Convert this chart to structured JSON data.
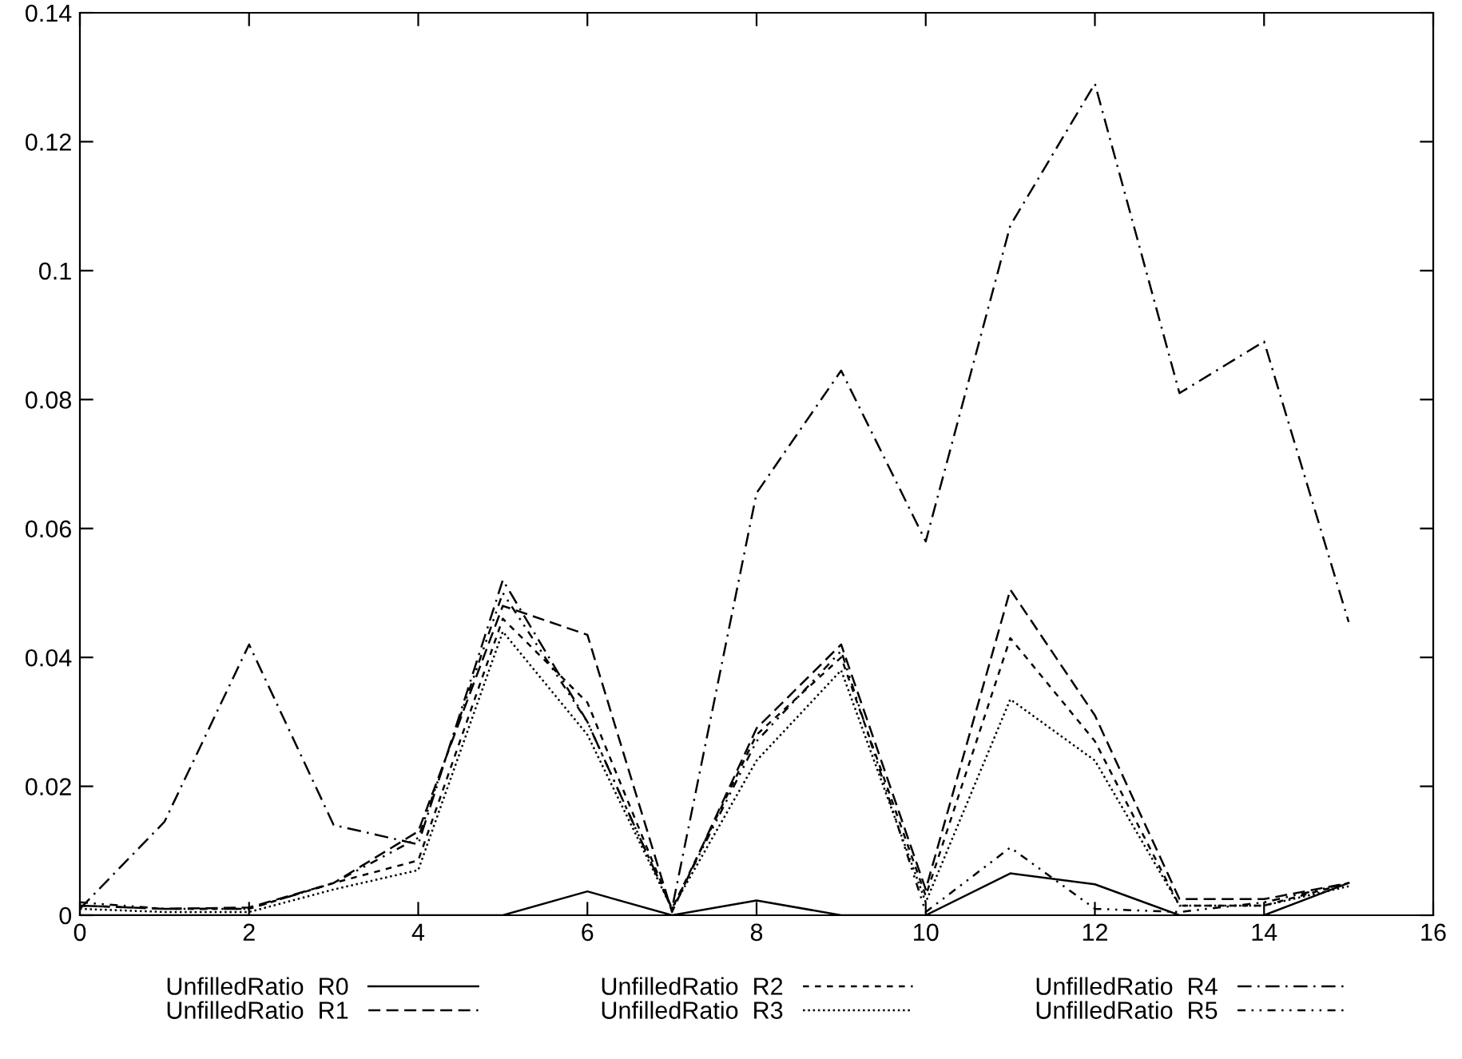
{
  "chart_data": {
    "type": "line",
    "x": [
      0,
      1,
      2,
      3,
      4,
      5,
      6,
      7,
      8,
      9,
      10,
      11,
      12,
      13,
      14,
      15
    ],
    "xlim": [
      0,
      16
    ],
    "xticks": [
      0,
      2,
      4,
      6,
      8,
      10,
      12,
      14,
      16
    ],
    "ylim": [
      0,
      0.14
    ],
    "yticks": [
      0,
      0.02,
      0.04,
      0.06,
      0.08,
      0.1,
      0.12,
      0.14
    ],
    "grid": false,
    "legend": "bottom",
    "marker": "none",
    "series": [
      {
        "name": "UnfilledRatio  R0",
        "color": "#000000",
        "line_style": "solid",
        "values": [
          0,
          0,
          0,
          0,
          0,
          0,
          0.0037,
          0,
          0.0023,
          0,
          0,
          0.0065,
          0.0048,
          0,
          0,
          0.005
        ]
      },
      {
        "name": "UnfilledRatio  R1",
        "color": "#000000",
        "line_style": "dashed",
        "values": [
          0.0015,
          0.001,
          0.0012,
          0.005,
          0.013,
          0.048,
          0.0435,
          0.0005,
          0.029,
          0.042,
          0.004,
          0.0505,
          0.031,
          0.0025,
          0.0025,
          0.005
        ]
      },
      {
        "name": "UnfilledRatio  R2",
        "color": "#000000",
        "line_style": "short_dashed",
        "values": [
          0.0015,
          0.001,
          0.001,
          0.005,
          0.0085,
          0.046,
          0.033,
          0.001,
          0.028,
          0.04,
          0.003,
          0.043,
          0.027,
          0.0015,
          0.0015,
          0.005
        ]
      },
      {
        "name": "UnfilledRatio  R3",
        "color": "#000000",
        "line_style": "dotted",
        "values": [
          0.001,
          0.0005,
          0.0005,
          0.004,
          0.007,
          0.044,
          0.028,
          0.001,
          0.024,
          0.038,
          0.002,
          0.0335,
          0.024,
          0.0015,
          0.0015,
          0.0045
        ]
      },
      {
        "name": "UnfilledRatio  R4",
        "color": "#000000",
        "line_style": "dashdot",
        "values": [
          0.001,
          0.0145,
          0.042,
          0.014,
          0.011,
          0.052,
          0.03,
          0.001,
          0.0655,
          0.0845,
          0.058,
          0.107,
          0.129,
          0.081,
          0.089,
          0.0455
        ]
      },
      {
        "name": "UnfilledRatio  R5",
        "color": "#000000",
        "line_style": "dashdotdot",
        "values": [
          0.002,
          0.001,
          0.001,
          0.005,
          0.012,
          0.05,
          0.03,
          0.001,
          0.027,
          0.041,
          0.0005,
          0.0105,
          0.001,
          0.0005,
          0.002,
          0.005
        ]
      }
    ]
  }
}
